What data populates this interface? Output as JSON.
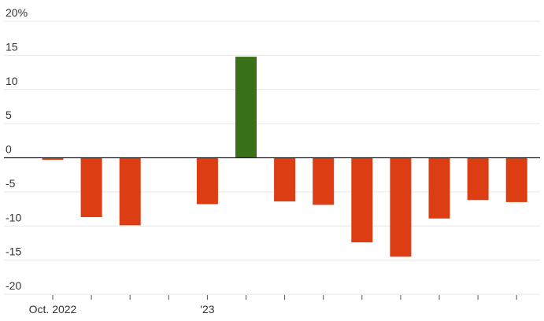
{
  "chart_data": {
    "type": "bar",
    "y_ticks": [
      20,
      15,
      10,
      5,
      0,
      -5,
      -10,
      -15,
      -20
    ],
    "y_tick_labels": [
      "20%",
      "15",
      "10",
      "5",
      "0",
      "-5",
      "-10",
      "-15",
      "-20"
    ],
    "ylim": [
      -20,
      20
    ],
    "x_labels": [
      {
        "index": 0,
        "label": "Oct. 2022"
      },
      {
        "index": 4,
        "label": "'23"
      }
    ],
    "values": [
      -0.3,
      -8.7,
      -9.9,
      null,
      -6.8,
      14.8,
      -6.4,
      -6.9,
      -12.4,
      -14.5,
      -8.9,
      -6.2,
      -6.5
    ],
    "colors": {
      "positive": "#3a7118",
      "negative": "#dc3d12"
    },
    "grid": true,
    "title": "",
    "xlabel": "",
    "ylabel": ""
  }
}
